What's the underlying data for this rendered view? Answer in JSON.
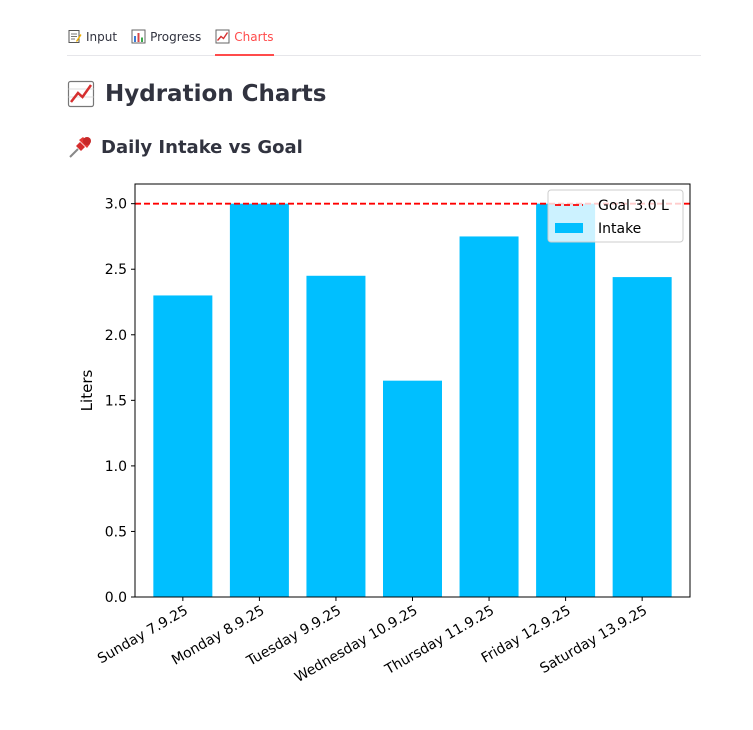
{
  "tabs": [
    {
      "label": "Input",
      "icon": "memo-icon",
      "active": false
    },
    {
      "label": "Progress",
      "icon": "bar-chart-icon",
      "active": false
    },
    {
      "label": "Charts",
      "icon": "chart-increasing-icon",
      "active": true
    }
  ],
  "page": {
    "title": "Hydration Charts",
    "title_icon": "chart-increasing-icon",
    "subtitle": "Daily Intake vs Goal",
    "subtitle_icon": "pushpin-icon"
  },
  "colors": {
    "accent": "#ff4b4b",
    "bar": "#00bfff",
    "goal_line": "#ff0000",
    "text": "#31333f"
  },
  "chart_data": {
    "type": "bar",
    "categories": [
      "Sunday 7.9.25",
      "Monday 8.9.25",
      "Tuesday 9.9.25",
      "Wednesday 10.9.25",
      "Thursday 11.9.25",
      "Friday 12.9.25",
      "Saturday 13.9.25"
    ],
    "series": [
      {
        "name": "Intake",
        "values": [
          2.3,
          3.0,
          2.45,
          1.65,
          2.75,
          3.0,
          2.44
        ]
      }
    ],
    "goal": {
      "name": "Goal 3.0 L",
      "value": 3.0
    },
    "ylabel": "Liters",
    "xlabel": "",
    "ylim": [
      0,
      3.15
    ],
    "yticks": [
      "0.0",
      "0.5",
      "1.0",
      "1.5",
      "2.0",
      "2.5",
      "3.0"
    ],
    "legend_position": "top-right",
    "grid": false
  }
}
